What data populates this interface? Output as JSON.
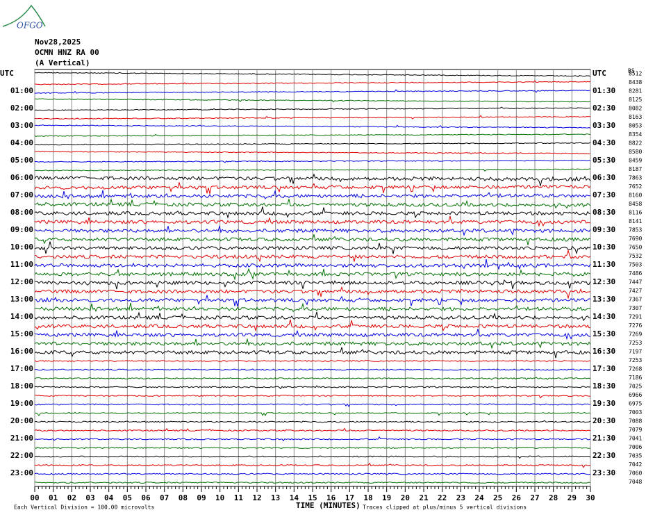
{
  "header": {
    "logo": "OFGO",
    "date": "Nov28,2025",
    "station": "OCMN HNZ RA 00",
    "component": "(A Vertical)"
  },
  "left_labels": [
    "UTC",
    "01:00",
    "02:00",
    "03:00",
    "04:00",
    "05:00",
    "06:00",
    "07:00",
    "08:00",
    "09:00",
    "10:00",
    "11:00",
    "12:00",
    "13:00",
    "14:00",
    "15:00",
    "16:00",
    "17:00",
    "18:00",
    "19:00",
    "20:00",
    "21:00",
    "22:00",
    "23:00"
  ],
  "right_labels": [
    "UTC",
    "01:30",
    "02:30",
    "03:30",
    "04:30",
    "05:30",
    "06:30",
    "07:30",
    "08:30",
    "09:30",
    "10:30",
    "11:30",
    "12:30",
    "13:30",
    "14:30",
    "15:30",
    "16:30",
    "17:30",
    "18:30",
    "19:30",
    "20:30",
    "21:30",
    "22:30",
    "23:30"
  ],
  "bias_label": "BS",
  "bias_values": [
    8512,
    8438,
    8281,
    8125,
    8082,
    8163,
    8053,
    8354,
    8822,
    8580,
    8459,
    8187,
    7863,
    7652,
    8160,
    8458,
    8116,
    8141,
    7853,
    7690,
    7650,
    7532,
    7503,
    7486,
    7447,
    7427,
    7367,
    7307,
    7291,
    7276,
    7269,
    7253,
    7197,
    7253,
    7268,
    7186,
    7025,
    6966,
    6975,
    7003,
    7088,
    7079,
    7041,
    7006,
    7035,
    7042,
    7060,
    7048
  ],
  "trace_colors": [
    "#000000",
    "#e00000",
    "#0000e0",
    "#007000"
  ],
  "x_labels": [
    "00",
    "01",
    "02",
    "03",
    "04",
    "05",
    "06",
    "07",
    "08",
    "09",
    "10",
    "11",
    "12",
    "13",
    "14",
    "15",
    "16",
    "17",
    "18",
    "19",
    "20",
    "21",
    "22",
    "23",
    "24",
    "25",
    "26",
    "27",
    "28",
    "29",
    "30"
  ],
  "x_title": "TIME (MINUTES)",
  "footer_left": "Each Vertical Division =  100.00 microvolts",
  "footer_right": "Traces clipped at plus/minus 5 vertical divisions"
}
